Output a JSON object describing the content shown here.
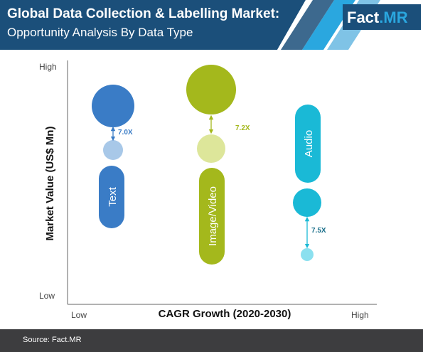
{
  "header": {
    "title": "Global Data Collection & Labelling Market:",
    "subtitle": "Opportunity Analysis By Data Type",
    "logo_part1": "Fact",
    "logo_part2": ".MR"
  },
  "footer": {
    "source": "Source: Fact.MR"
  },
  "colors": {
    "header_dark": "#1b4f7a",
    "accent_light": "#7fc3e6",
    "accent_mid": "#2aa7df",
    "footer": "#3d3d3f"
  },
  "chart_data": {
    "type": "bubble-comparison",
    "xlabel": "CAGR Growth (2020-2030)",
    "ylabel": "Market Value (US$ Mn)",
    "x_ticks": [
      "Low",
      "High"
    ],
    "y_ticks": [
      "High",
      "Low"
    ],
    "series": [
      {
        "name": "Text",
        "multiplier": "7.0X",
        "color_large": "#3a7cc6",
        "color_small": "#a8c8e8",
        "color_label": "#3a7cc6"
      },
      {
        "name": "Image/Video",
        "multiplier": "7.2X",
        "color_large": "#a4b81c",
        "color_small": "#dde69a",
        "color_label": "#a4b81c"
      },
      {
        "name": "Audio",
        "multiplier": "7.5X",
        "color_large": "#1ab9d6",
        "color_small": "#8be0ef",
        "color_label": "#1ab9d6"
      }
    ]
  }
}
